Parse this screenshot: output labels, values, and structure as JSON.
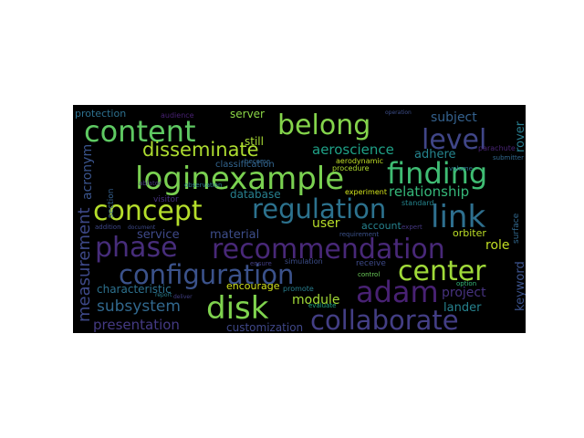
{
  "background_color": "#000000",
  "page_color": "#ffffff",
  "words": [
    {
      "text": "loginexample",
      "color": "#7ad151"
    },
    {
      "text": "recommendation",
      "color": "#482878"
    },
    {
      "text": "configuration",
      "color": "#3b528b"
    },
    {
      "text": "phase",
      "color": "#472d7b"
    },
    {
      "text": "regulation",
      "color": "#2c728e"
    },
    {
      "text": "collaborate",
      "color": "#433e85"
    },
    {
      "text": "content",
      "color": "#5ec962"
    },
    {
      "text": "concept",
      "color": "#b5de2b"
    },
    {
      "text": "belong",
      "color": "#84d44b"
    },
    {
      "text": "finding",
      "color": "#3fbc73"
    },
    {
      "text": "link",
      "color": "#2e6f8e"
    },
    {
      "text": "disk",
      "color": "#7fd34e"
    },
    {
      "text": "adam",
      "color": "#482173"
    },
    {
      "text": "level",
      "color": "#404688"
    },
    {
      "text": "center",
      "color": "#a0da39"
    },
    {
      "text": "disseminate",
      "color": "#addc30"
    },
    {
      "text": "measurement",
      "color": "#3e4989"
    },
    {
      "text": "subsystem",
      "color": "#31688e"
    },
    {
      "text": "aeroscience",
      "color": "#1fa187"
    },
    {
      "text": "presentation",
      "color": "#443a83"
    },
    {
      "text": "relationship",
      "color": "#35b779"
    },
    {
      "text": "module",
      "color": "#a2da37"
    },
    {
      "text": "subject",
      "color": "#34618d"
    },
    {
      "text": "acronym",
      "color": "#3a548c"
    },
    {
      "text": "project",
      "color": "#46327e"
    },
    {
      "text": "user",
      "color": "#b8de29"
    },
    {
      "text": "service",
      "color": "#3e4989"
    },
    {
      "text": "material",
      "color": "#3d4d8a"
    },
    {
      "text": "database",
      "color": "#277f8e"
    },
    {
      "text": "role",
      "color": "#c2df23"
    },
    {
      "text": "lander",
      "color": "#26828e"
    },
    {
      "text": "customization",
      "color": "#3f4788"
    },
    {
      "text": "characteristic",
      "color": "#2d718e"
    },
    {
      "text": "adhere",
      "color": "#25848e"
    },
    {
      "text": "server",
      "color": "#8bd646"
    },
    {
      "text": "still",
      "color": "#a8db34"
    },
    {
      "text": "encourage",
      "color": "#d0e11c"
    },
    {
      "text": "rover",
      "color": "#287c8e"
    },
    {
      "text": "keyword",
      "color": "#3b528b"
    },
    {
      "text": "orbiter",
      "color": "#bddf26"
    },
    {
      "text": "protection",
      "color": "#2d708e"
    },
    {
      "text": "account",
      "color": "#26828e"
    },
    {
      "text": "classification",
      "color": "#32648e"
    },
    {
      "text": "experiment",
      "color": "#d2e21b"
    },
    {
      "text": "aerodynamic",
      "color": "#c0df25"
    },
    {
      "text": "procedure",
      "color": "#b0dd2f"
    },
    {
      "text": "surface",
      "color": "#31688e"
    },
    {
      "text": "standard",
      "color": "#25858e"
    },
    {
      "text": "receive",
      "color": "#3e4a89"
    },
    {
      "text": "section",
      "color": "#34608d"
    },
    {
      "text": "promote",
      "color": "#287d8e"
    },
    {
      "text": "visitor",
      "color": "#46307e"
    },
    {
      "text": "requirement",
      "color": "#3b528b"
    },
    {
      "text": "submitter",
      "color": "#31688e"
    },
    {
      "text": "audience",
      "color": "#482173"
    },
    {
      "text": "become",
      "color": "#32658e"
    },
    {
      "text": "simulation",
      "color": "#3d4e8a"
    },
    {
      "text": "ensure",
      "color": "#433e85"
    },
    {
      "text": "addition",
      "color": "#3f4889"
    },
    {
      "text": "expert",
      "color": "#453781"
    },
    {
      "text": "parachute",
      "color": "#482475"
    },
    {
      "text": "observation",
      "color": "#2a778e"
    },
    {
      "text": "evaluate",
      "color": "#22a785"
    },
    {
      "text": "control",
      "color": "#6ccd5a"
    },
    {
      "text": "option",
      "color": "#35b779"
    },
    {
      "text": "ablator",
      "color": "#46337e"
    },
    {
      "text": "document",
      "color": "#3e4a89"
    },
    {
      "text": "volume",
      "color": "#2c738e"
    },
    {
      "text": "report",
      "color": "#287d8e"
    },
    {
      "text": "operation",
      "color": "#3d4e8a"
    },
    {
      "text": "deliver",
      "color": "#423f85"
    }
  ]
}
